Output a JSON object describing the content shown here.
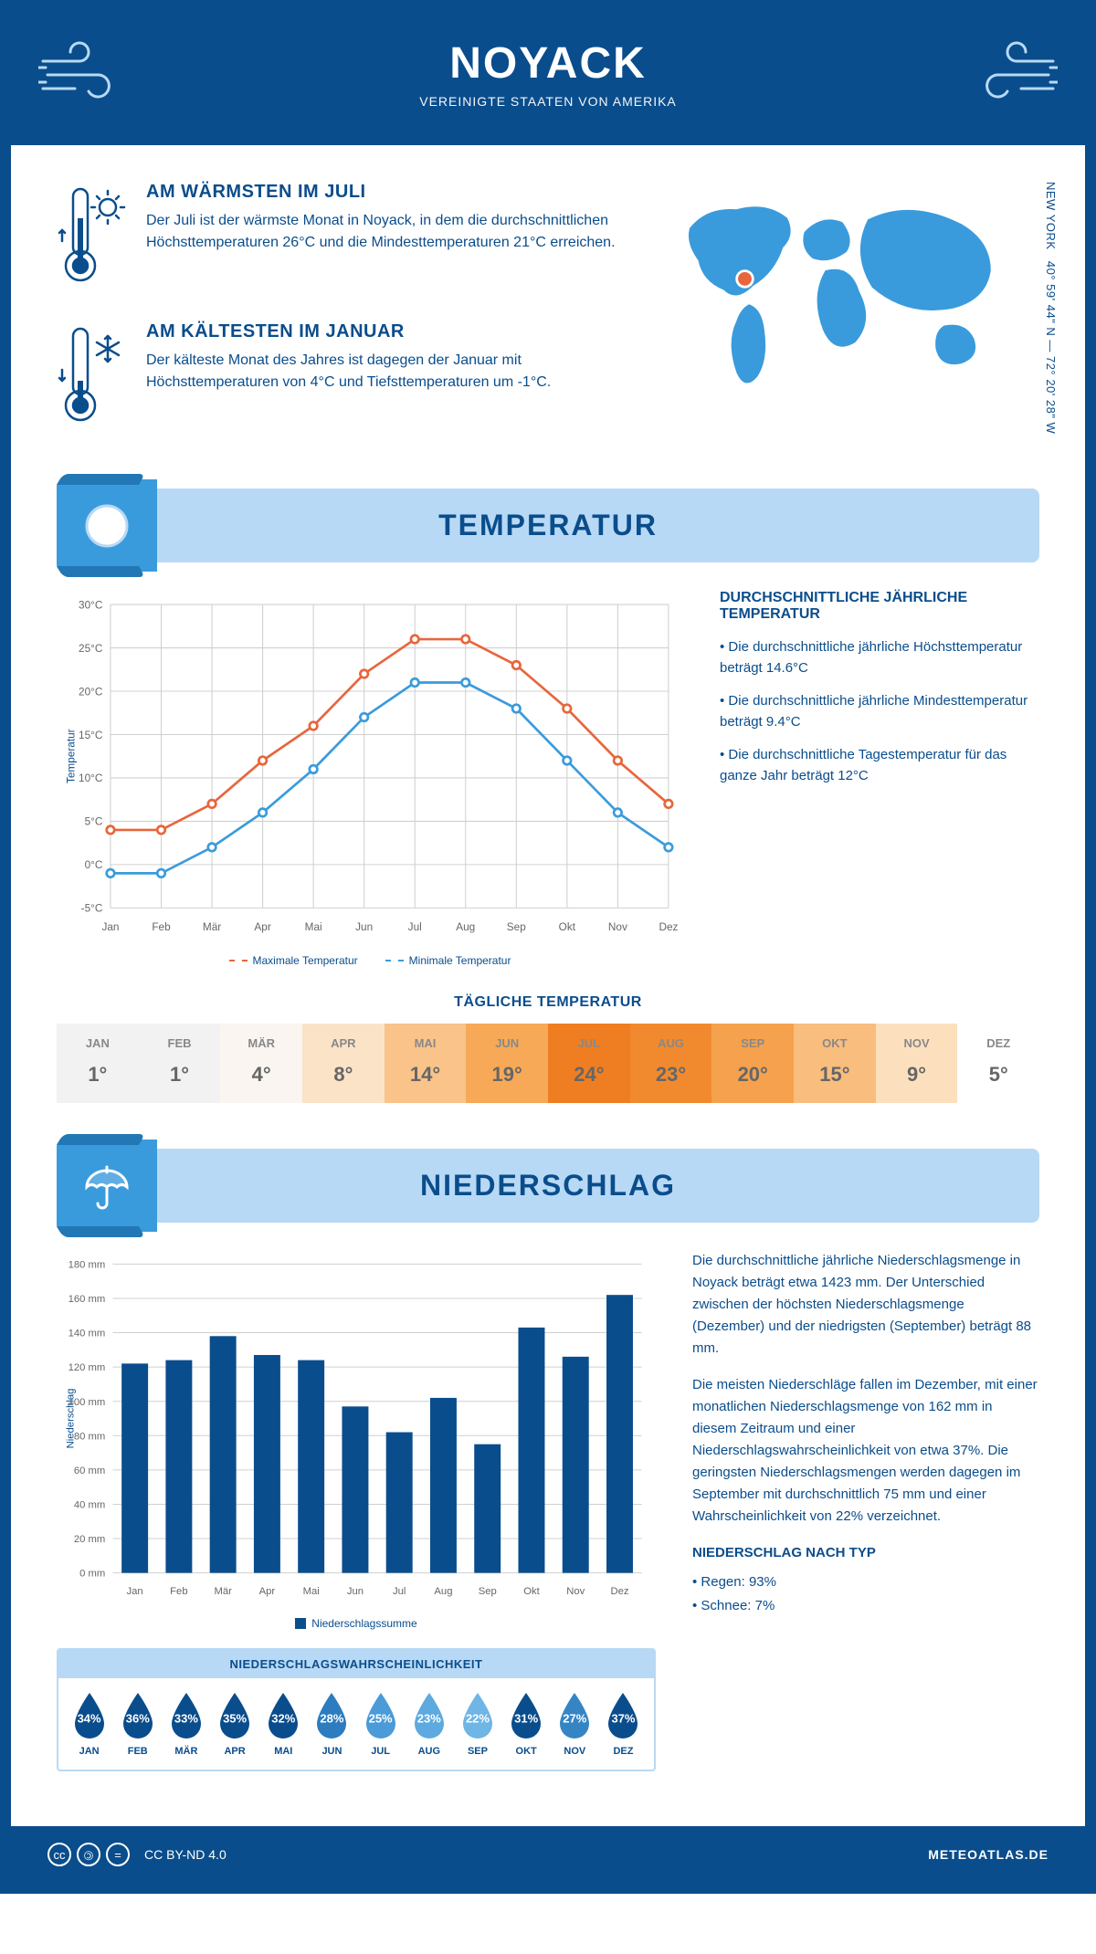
{
  "header": {
    "title": "NOYACK",
    "subtitle": "VEREINIGTE STAATEN VON AMERIKA"
  },
  "coords": {
    "lat": "40° 59' 44\" N",
    "lon": "72° 20' 28\" W",
    "region": "NEW YORK"
  },
  "intro": {
    "warm": {
      "title": "AM WÄRMSTEN IM JULI",
      "text": "Der Juli ist der wärmste Monat in Noyack, in dem die durchschnittlichen Höchsttemperaturen 26°C und die Mindesttemperaturen 21°C erreichen."
    },
    "cold": {
      "title": "AM KÄLTESTEN IM JANUAR",
      "text": "Der kälteste Monat des Jahres ist dagegen der Januar mit Höchsttemperaturen von 4°C und Tiefsttemperaturen um -1°C."
    }
  },
  "sections": {
    "temp": "TEMPERATUR",
    "precip": "NIEDERSCHLAG"
  },
  "temp_chart": {
    "months": [
      "Jan",
      "Feb",
      "Mär",
      "Apr",
      "Mai",
      "Jun",
      "Jul",
      "Aug",
      "Sep",
      "Okt",
      "Nov",
      "Dez"
    ],
    "max_series": [
      4,
      4,
      7,
      12,
      16,
      22,
      26,
      26,
      23,
      18,
      12,
      7
    ],
    "min_series": [
      -1,
      -1,
      2,
      6,
      11,
      17,
      21,
      21,
      18,
      12,
      6,
      2
    ],
    "ylim": [
      -5,
      30
    ],
    "ytick_step": 5,
    "ylabel": "Temperatur",
    "max_color": "#e8663c",
    "min_color": "#3a9bdc",
    "grid_color": "#d0d0d0",
    "legend_max": "Maximale Temperatur",
    "legend_min": "Minimale Temperatur"
  },
  "temp_side": {
    "heading": "DURCHSCHNITTLICHE JÄHRLICHE TEMPERATUR",
    "b1": "• Die durchschnittliche jährliche Höchsttemperatur beträgt 14.6°C",
    "b2": "• Die durchschnittliche jährliche Mindesttemperatur beträgt 9.4°C",
    "b3": "• Die durchschnittliche Tagestemperatur für das ganze Jahr beträgt 12°C"
  },
  "daily": {
    "title": "TÄGLICHE TEMPERATUR",
    "months": [
      "JAN",
      "FEB",
      "MÄR",
      "APR",
      "MAI",
      "JUN",
      "JUL",
      "AUG",
      "SEP",
      "OKT",
      "NOV",
      "DEZ"
    ],
    "values": [
      "1°",
      "1°",
      "4°",
      "8°",
      "14°",
      "19°",
      "24°",
      "23°",
      "20°",
      "15°",
      "9°",
      "5°"
    ],
    "colors": [
      "#f2f2f2",
      "#f2f2f2",
      "#faf5f0",
      "#fbe3c8",
      "#f9c38a",
      "#f7a957",
      "#ef7e22",
      "#f18a2e",
      "#f5a14d",
      "#f9bd7e",
      "#fce0bd",
      "#ffffff"
    ]
  },
  "precip_chart": {
    "months": [
      "Jan",
      "Feb",
      "Mär",
      "Apr",
      "Mai",
      "Jun",
      "Jul",
      "Aug",
      "Sep",
      "Okt",
      "Nov",
      "Dez"
    ],
    "values": [
      122,
      124,
      138,
      127,
      124,
      97,
      82,
      102,
      75,
      143,
      126,
      162
    ],
    "ylim": [
      0,
      180
    ],
    "ytick_step": 20,
    "ylabel": "Niederschlag",
    "bar_color": "#0a4d8c",
    "grid_color": "#d0d0d0",
    "legend": "Niederschlagssumme"
  },
  "precip_side": {
    "p1": "Die durchschnittliche jährliche Niederschlagsmenge in Noyack beträgt etwa 1423 mm. Der Unterschied zwischen der höchsten Niederschlagsmenge (Dezember) und der niedrigsten (September) beträgt 88 mm.",
    "p2": "Die meisten Niederschläge fallen im Dezember, mit einer monatlichen Niederschlagsmenge von 162 mm in diesem Zeitraum und einer Niederschlagswahrscheinlichkeit von etwa 37%. Die geringsten Niederschlagsmengen werden dagegen im September mit durchschnittlich 75 mm und einer Wahrscheinlichkeit von 22% verzeichnet.",
    "type_heading": "NIEDERSCHLAG NACH TYP",
    "rain": "• Regen: 93%",
    "snow": "• Schnee: 7%"
  },
  "prob": {
    "title": "NIEDERSCHLAGSWAHRSCHEINLICHKEIT",
    "months": [
      "JAN",
      "FEB",
      "MÄR",
      "APR",
      "MAI",
      "JUN",
      "JUL",
      "AUG",
      "SEP",
      "OKT",
      "NOV",
      "DEZ"
    ],
    "values": [
      "34%",
      "36%",
      "33%",
      "35%",
      "32%",
      "28%",
      "25%",
      "23%",
      "22%",
      "31%",
      "27%",
      "37%"
    ],
    "colors": [
      "#0a4d8c",
      "#0a4d8c",
      "#0a4d8c",
      "#0a4d8c",
      "#0a4d8c",
      "#2d7cc0",
      "#4a9bd8",
      "#5da9e0",
      "#6fb5e5",
      "#0a4d8c",
      "#3585c5",
      "#0a4d8c"
    ]
  },
  "footer": {
    "license": "CC BY-ND 4.0",
    "site": "METEOATLAS.DE"
  },
  "colors": {
    "primary": "#0a4d8c",
    "light": "#b8d9f5",
    "mid": "#3a9bdc",
    "marker": "#e8663c"
  }
}
